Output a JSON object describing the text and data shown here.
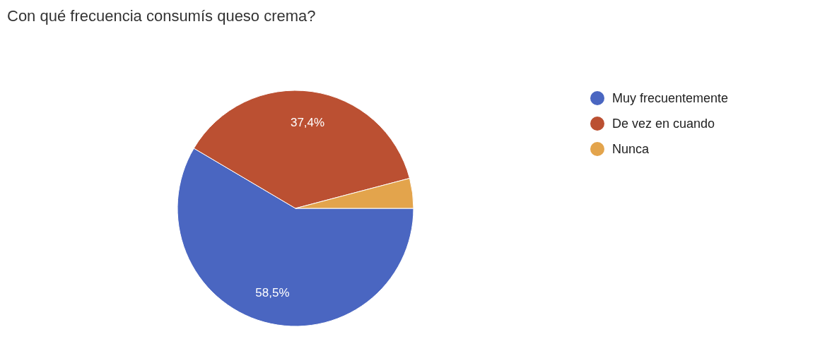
{
  "chart_data": {
    "type": "pie",
    "title": "Con qué frecuencia consumís queso crema?",
    "categories": [
      "Muy frecuentemente",
      "De vez en cuando",
      "Nunca"
    ],
    "values": [
      58.5,
      37.4,
      4.1
    ],
    "colors": [
      "#4a66c1",
      "#bb5032",
      "#e3a44c"
    ],
    "value_labels": [
      "58,5%",
      "37,4%",
      null
    ],
    "legend": "right"
  }
}
